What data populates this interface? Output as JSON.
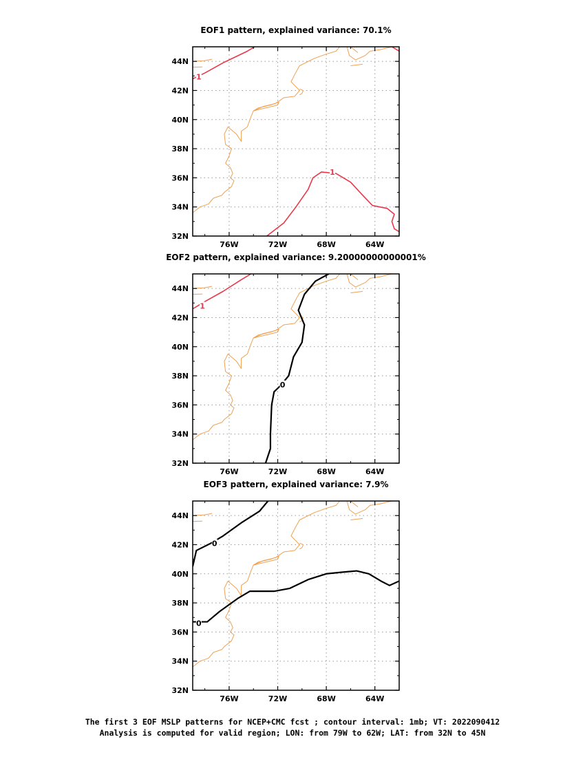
{
  "chart_data": [
    {
      "type": "contour-map",
      "title": "EOF1 pattern, explained variance: 70.1%",
      "x_ticks": [
        "76W",
        "72W",
        "68W",
        "64W"
      ],
      "y_ticks": [
        "32N",
        "34N",
        "36N",
        "38N",
        "40N",
        "42N",
        "44N"
      ],
      "xlim": [
        -79,
        -62
      ],
      "ylim": [
        32,
        45
      ],
      "grid": true,
      "contours": [
        {
          "label": "1",
          "color": "#e8384a",
          "label_at": [
            -78.5,
            42.95
          ],
          "points": [
            [
              -79,
              42.8
            ],
            [
              -78,
              43.2
            ],
            [
              -76.5,
              43.9
            ],
            [
              -74.5,
              44.7
            ],
            [
              -73.9,
              45
            ]
          ]
        },
        {
          "label": "1",
          "color": "#e8384a",
          "label_at": [
            -67.5,
            36.4
          ],
          "points": [
            [
              -72.9,
              32
            ],
            [
              -71.5,
              32.9
            ],
            [
              -70.5,
              34.0
            ],
            [
              -69.5,
              35.2
            ],
            [
              -69.1,
              36.0
            ],
            [
              -68.4,
              36.4
            ],
            [
              -67.2,
              36.3
            ],
            [
              -66.0,
              35.7
            ],
            [
              -65.0,
              34.8
            ],
            [
              -64.2,
              34.1
            ],
            [
              -63.0,
              33.9
            ],
            [
              -62.4,
              33.5
            ],
            [
              -62.6,
              33.0
            ],
            [
              -62.4,
              32.5
            ],
            [
              -62,
              32.3
            ]
          ]
        },
        {
          "label": "",
          "color": "#e8384a",
          "points": [
            [
              -62.6,
              45
            ],
            [
              -62.2,
              44.8
            ],
            [
              -62,
              44.7
            ]
          ]
        }
      ]
    },
    {
      "type": "contour-map",
      "title": "EOF2 pattern, explained variance: 9.20000000000001%",
      "x_ticks": [
        "76W",
        "72W",
        "68W",
        "64W"
      ],
      "y_ticks": [
        "32N",
        "34N",
        "36N",
        "38N",
        "40N",
        "42N",
        "44N"
      ],
      "xlim": [
        -79,
        -62
      ],
      "ylim": [
        32,
        45
      ],
      "grid": true,
      "contours": [
        {
          "label": "1",
          "color": "#e8384a",
          "label_at": [
            -78.2,
            42.8
          ],
          "points": [
            [
              -79,
              42.6
            ],
            [
              -78,
              43.1
            ],
            [
              -76.5,
              43.8
            ],
            [
              -75,
              44.6
            ],
            [
              -74.2,
              45
            ]
          ]
        },
        {
          "label": "0",
          "color": "#000000",
          "label_at": [
            -71.6,
            37.4
          ],
          "points": [
            [
              -67.8,
              45
            ],
            [
              -68.9,
              44.5
            ],
            [
              -69.8,
              43.6
            ],
            [
              -70.3,
              42.5
            ],
            [
              -69.8,
              41.5
            ],
            [
              -70.0,
              40.3
            ],
            [
              -70.7,
              39.3
            ],
            [
              -71.1,
              38.0
            ],
            [
              -71.8,
              37.3
            ],
            [
              -72.3,
              36.9
            ],
            [
              -72.5,
              36.0
            ],
            [
              -72.6,
              34.0
            ],
            [
              -72.6,
              33.0
            ],
            [
              -73.0,
              32
            ]
          ]
        }
      ]
    },
    {
      "type": "contour-map",
      "title": "EOF3 pattern, explained variance: 7.9%",
      "x_ticks": [
        "76W",
        "72W",
        "68W",
        "64W"
      ],
      "y_ticks": [
        "32N",
        "34N",
        "36N",
        "38N",
        "40N",
        "42N",
        "44N"
      ],
      "xlim": [
        -79,
        -62
      ],
      "ylim": [
        32,
        45
      ],
      "grid": true,
      "contours": [
        {
          "label": "0",
          "color": "#000000",
          "label_at": [
            -77.2,
            42.1
          ],
          "points": [
            [
              -79,
              40.5
            ],
            [
              -78.7,
              41.6
            ],
            [
              -77.5,
              42.1
            ],
            [
              -76.5,
              42.6
            ],
            [
              -75.0,
              43.5
            ],
            [
              -73.5,
              44.3
            ],
            [
              -72.8,
              45
            ]
          ]
        },
        {
          "label": "0",
          "color": "#000000",
          "label_at": [
            -78.5,
            36.6
          ],
          "points": [
            [
              -79,
              36.7
            ],
            [
              -77.8,
              36.7
            ],
            [
              -76.8,
              37.4
            ],
            [
              -75.3,
              38.3
            ],
            [
              -74.3,
              38.8
            ],
            [
              -72.3,
              38.8
            ],
            [
              -71.0,
              39.0
            ],
            [
              -69.5,
              39.6
            ],
            [
              -68.0,
              40.0
            ],
            [
              -66.8,
              40.1
            ],
            [
              -65.5,
              40.2
            ],
            [
              -64.5,
              40.0
            ],
            [
              -63.5,
              39.5
            ],
            [
              -62.8,
              39.2
            ],
            [
              -62,
              39.5
            ]
          ]
        }
      ]
    }
  ],
  "coastline": [
    [
      [
        -79,
        33.6
      ],
      [
        -78.4,
        34.0
      ],
      [
        -77.7,
        34.2
      ],
      [
        -77.3,
        34.6
      ],
      [
        -76.6,
        34.8
      ],
      [
        -76.4,
        35.0
      ],
      [
        -75.8,
        35.4
      ],
      [
        -75.6,
        35.8
      ],
      [
        -75.9,
        36.0
      ],
      [
        -75.7,
        36.3
      ],
      [
        -75.9,
        36.7
      ],
      [
        -76.3,
        37.0
      ],
      [
        -76.0,
        37.5
      ],
      [
        -75.8,
        38.0
      ],
      [
        -76.3,
        38.3
      ],
      [
        -76.4,
        39.0
      ],
      [
        -76.1,
        39.5
      ],
      [
        -75.4,
        39.0
      ],
      [
        -75.0,
        38.5
      ],
      [
        -75.0,
        39.2
      ],
      [
        -74.5,
        39.5
      ],
      [
        -74.2,
        40.2
      ],
      [
        -74.0,
        40.6
      ],
      [
        -73.2,
        40.9
      ],
      [
        -72.2,
        41.1
      ],
      [
        -71.5,
        41.5
      ],
      [
        -70.6,
        41.6
      ],
      [
        -70.2,
        42.0
      ],
      [
        -70.9,
        42.6
      ],
      [
        -70.6,
        43.1
      ],
      [
        -70.2,
        43.7
      ],
      [
        -69.0,
        44.2
      ],
      [
        -68.0,
        44.5
      ],
      [
        -67.2,
        44.7
      ],
      [
        -66.9,
        45
      ]
    ],
    [
      [
        -74.0,
        40.6
      ],
      [
        -73.0,
        40.8
      ],
      [
        -72.0,
        41.0
      ],
      [
        -71.9,
        41.2
      ],
      [
        -72.6,
        41.0
      ],
      [
        -73.6,
        40.8
      ],
      [
        -74.0,
        40.6
      ]
    ],
    [
      [
        -70.2,
        41.7
      ],
      [
        -70.0,
        41.8
      ],
      [
        -69.9,
        42.0
      ],
      [
        -70.2,
        42.1
      ]
    ],
    [
      [
        -66.3,
        45
      ],
      [
        -66.1,
        44.4
      ],
      [
        -65.6,
        44.1
      ],
      [
        -64.8,
        44.4
      ],
      [
        -64.4,
        44.7
      ],
      [
        -63.6,
        44.8
      ],
      [
        -62.6,
        45
      ]
    ],
    [
      [
        -65.0,
        43.8
      ],
      [
        -66.0,
        43.7
      ]
    ],
    [
      [
        -79,
        44.0
      ],
      [
        -78.0,
        44.05
      ],
      [
        -77.4,
        44.15
      ]
    ],
    [
      [
        -79,
        43.6
      ],
      [
        -78.2,
        43.62
      ]
    ],
    [
      [
        -66.0,
        45
      ],
      [
        -65.4,
        44.6
      ]
    ]
  ],
  "caption": {
    "line1": "The first 3 EOF MSLP patterns for NCEP+CMC fcst ; contour interval: 1mb; VT: 2022090412",
    "line2": "Analysis is computed for valid region; LON: from 79W to 62W; LAT: from 32N to 45N"
  },
  "colors": {
    "coast": "#f0a050",
    "positive": "#e8384a",
    "zero": "#000000",
    "grid": "#999999"
  }
}
